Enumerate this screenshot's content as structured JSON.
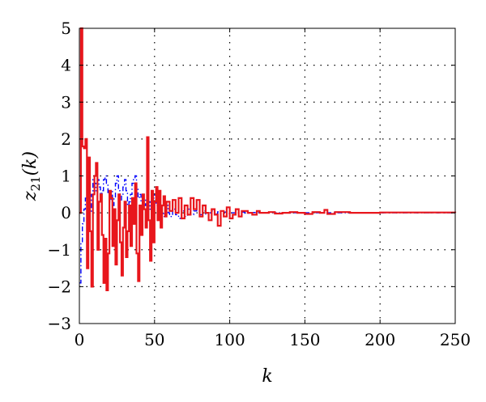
{
  "chart_data": {
    "type": "line",
    "title": "",
    "xlabel": "k",
    "ylabel_main": "z",
    "ylabel_sub": "21",
    "ylabel_suffix": "(k)",
    "xlim": [
      0,
      250
    ],
    "ylim": [
      -3,
      5
    ],
    "xticks": [
      0,
      50,
      100,
      150,
      200,
      250
    ],
    "yticks": [
      -3,
      -2,
      -1,
      0,
      1,
      2,
      3,
      4,
      5
    ],
    "grid": true,
    "legend": "none",
    "series": [
      {
        "color": "#0000ff",
        "style": "dash-dot",
        "step": true,
        "x": [
          0,
          1,
          2,
          3,
          4,
          5,
          6,
          7,
          8,
          9,
          10,
          11,
          12,
          13,
          14,
          15,
          16,
          17,
          18,
          19,
          20,
          21,
          22,
          23,
          24,
          25,
          26,
          27,
          28,
          29,
          30,
          31,
          32,
          33,
          34,
          35,
          36,
          37,
          38,
          39,
          40,
          41,
          42,
          43,
          44,
          45,
          46,
          47,
          48,
          49,
          50,
          51,
          52,
          53,
          54,
          55,
          56,
          57,
          58,
          59,
          60,
          62,
          64,
          66,
          68,
          70,
          72,
          74,
          76,
          78,
          80,
          82,
          84,
          86,
          88,
          90,
          92,
          94,
          96,
          98,
          100,
          105,
          110,
          115,
          120,
          125,
          130,
          140,
          150,
          160,
          170,
          180,
          190,
          200,
          250
        ],
        "values": [
          -1.9,
          -0.8,
          -0.3,
          0.1,
          0.4,
          0.6,
          0.3,
          0.0,
          0.5,
          0.9,
          0.8,
          0.6,
          0.9,
          0.7,
          0.4,
          0.6,
          0.9,
          1.0,
          0.8,
          0.5,
          0.3,
          0.6,
          0.2,
          0.4,
          0.8,
          1.0,
          0.6,
          0.3,
          0.5,
          0.7,
          0.9,
          0.6,
          0.2,
          0.3,
          0.5,
          0.8,
          0.9,
          1.0,
          0.7,
          0.4,
          0.5,
          0.3,
          0.1,
          0.2,
          0.4,
          0.5,
          0.3,
          0.1,
          0.2,
          0.4,
          0.5,
          0.2,
          0.0,
          0.1,
          0.2,
          0.0,
          -0.1,
          0.1,
          0.2,
          0.0,
          -0.1,
          0.1,
          -0.05,
          -0.15,
          0.05,
          -0.1,
          0.1,
          -0.05,
          0.05,
          0.1,
          -0.05,
          0.05,
          -0.05,
          0.0,
          0.05,
          -0.03,
          0.03,
          0.0,
          0.02,
          -0.02,
          0.0,
          0.02,
          -0.01,
          0.01,
          0.0,
          0.01,
          0.0,
          0.0,
          0.0,
          0.0,
          0.0,
          0.0,
          0.0,
          0.0,
          0.0
        ]
      },
      {
        "color": "#e8161c",
        "style": "solid",
        "step": true,
        "x": [
          0,
          1,
          2,
          3,
          4,
          5,
          6,
          7,
          8,
          9,
          10,
          11,
          12,
          13,
          14,
          15,
          16,
          17,
          18,
          19,
          20,
          21,
          22,
          23,
          24,
          25,
          26,
          27,
          28,
          29,
          30,
          31,
          32,
          33,
          34,
          35,
          36,
          37,
          38,
          39,
          40,
          41,
          42,
          43,
          44,
          45,
          46,
          47,
          48,
          49,
          50,
          51,
          52,
          53,
          54,
          55,
          56,
          57,
          58,
          60,
          62,
          64,
          66,
          68,
          70,
          72,
          74,
          76,
          78,
          80,
          82,
          84,
          86,
          88,
          90,
          92,
          94,
          96,
          98,
          100,
          102,
          104,
          106,
          108,
          110,
          112,
          115,
          118,
          120,
          123,
          126,
          130,
          135,
          140,
          145,
          150,
          155,
          160,
          163,
          165,
          170,
          180,
          200,
          250
        ],
        "values": [
          0.0,
          5.0,
          1.8,
          1.75,
          2.0,
          -1.5,
          1.5,
          -0.5,
          -2.0,
          0.5,
          1.0,
          1.35,
          -1.0,
          0.3,
          0.5,
          -0.6,
          -1.9,
          -0.7,
          -2.1,
          -1.1,
          0.6,
          0.4,
          -0.9,
          0.1,
          -1.4,
          -0.2,
          0.5,
          -0.8,
          -1.7,
          -0.4,
          0.3,
          -1.2,
          -0.5,
          0.2,
          -0.9,
          0.4,
          -0.3,
          0.8,
          -1.1,
          -1.85,
          0.2,
          -0.6,
          0.5,
          0.1,
          -0.4,
          2.05,
          -0.2,
          -1.3,
          0.6,
          -0.8,
          0.3,
          0.7,
          -0.2,
          0.6,
          -0.4,
          0.2,
          0.45,
          -0.1,
          0.3,
          0.05,
          0.35,
          0.0,
          0.4,
          -0.15,
          0.2,
          -0.05,
          0.4,
          0.1,
          0.35,
          -0.1,
          0.2,
          0.0,
          -0.2,
          0.1,
          -0.05,
          -0.35,
          0.05,
          -0.1,
          0.15,
          -0.15,
          -0.05,
          0.1,
          -0.1,
          0.05,
          0.05,
          0.0,
          -0.05,
          0.05,
          0.0,
          0.0,
          0.02,
          -0.02,
          0.0,
          0.02,
          0.0,
          -0.03,
          0.02,
          0.0,
          0.08,
          -0.03,
          0.02,
          0.0,
          0.01,
          0.0
        ]
      }
    ]
  }
}
